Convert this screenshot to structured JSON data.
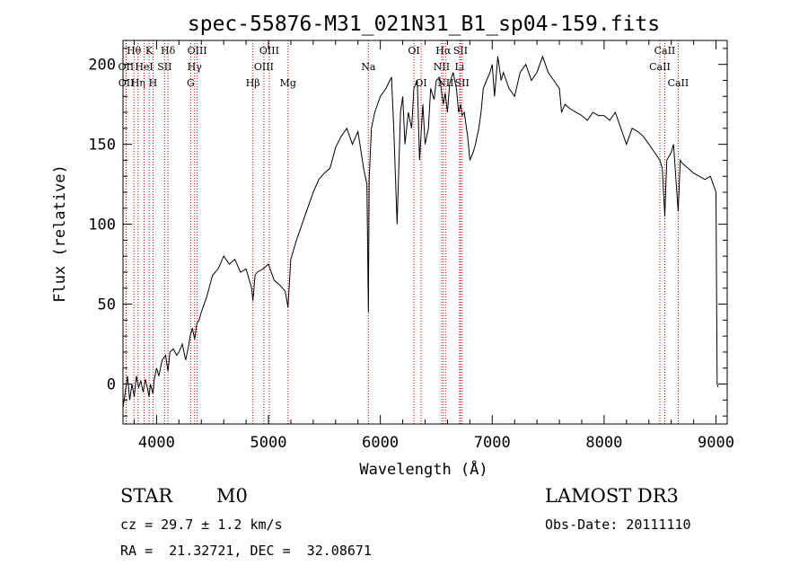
{
  "chart_data": {
    "type": "line",
    "title": "spec-55876-M31_021N31_B1_sp04-159.fits",
    "xlabel": "Wavelength (Å)",
    "ylabel": "Flux (relative)",
    "xlim": [
      3700,
      9100
    ],
    "ylim": [
      -25,
      215
    ],
    "xticks": [
      4000,
      5000,
      6000,
      7000,
      8000,
      9000
    ],
    "yticks": [
      0,
      50,
      100,
      150,
      200
    ],
    "series": [
      {
        "x": [
          3700,
          3720,
          3740,
          3760,
          3780,
          3800,
          3820,
          3840,
          3860,
          3880,
          3900,
          3920,
          3933,
          3945,
          3968,
          3980,
          4000,
          4020,
          4050,
          4080,
          4102,
          4120,
          4150,
          4180,
          4200,
          4230,
          4260,
          4290,
          4300,
          4320,
          4340,
          4360,
          4380,
          4400,
          4450,
          4500,
          4550,
          4600,
          4650,
          4700,
          4750,
          4800,
          4850,
          4861,
          4880,
          4900,
          4950,
          5000,
          5050,
          5100,
          5150,
          5175,
          5180,
          5200,
          5250,
          5300,
          5350,
          5400,
          5450,
          5500,
          5550,
          5600,
          5650,
          5700,
          5750,
          5800,
          5850,
          5880,
          5893,
          5900,
          5920,
          5950,
          6000,
          6050,
          6100,
          6120,
          6150,
          6180,
          6200,
          6220,
          6250,
          6280,
          6300,
          6330,
          6350,
          6380,
          6400,
          6430,
          6450,
          6480,
          6500,
          6530,
          6563,
          6580,
          6600,
          6620,
          6650,
          6680,
          6700,
          6717,
          6731,
          6750,
          6780,
          6800,
          6830,
          6850,
          6880,
          6900,
          6920,
          6950,
          6980,
          7000,
          7020,
          7050,
          7080,
          7100,
          7150,
          7200,
          7250,
          7300,
          7350,
          7400,
          7450,
          7500,
          7550,
          7600,
          7620,
          7650,
          7700,
          7750,
          7800,
          7850,
          7900,
          7950,
          8000,
          8050,
          8100,
          8150,
          8200,
          8250,
          8300,
          8350,
          8400,
          8450,
          8498,
          8520,
          8542,
          8560,
          8600,
          8620,
          8662,
          8680,
          8700,
          8750,
          8800,
          8850,
          8900,
          8950,
          9000,
          9010,
          9020
        ],
        "values": [
          -15,
          -5,
          5,
          -10,
          0,
          -8,
          5,
          -2,
          2,
          -5,
          3,
          -3,
          -8,
          0,
          -6,
          3,
          10,
          5,
          15,
          18,
          8,
          20,
          22,
          18,
          20,
          25,
          15,
          25,
          30,
          35,
          28,
          38,
          40,
          45,
          55,
          68,
          72,
          80,
          75,
          78,
          70,
          72,
          60,
          52,
          68,
          70,
          72,
          75,
          65,
          62,
          58,
          48,
          55,
          78,
          90,
          100,
          110,
          120,
          128,
          132,
          135,
          148,
          155,
          160,
          150,
          158,
          135,
          125,
          45,
          128,
          160,
          170,
          180,
          185,
          192,
          160,
          100,
          170,
          180,
          150,
          170,
          160,
          185,
          190,
          140,
          175,
          150,
          160,
          185,
          178,
          190,
          192,
          175,
          182,
          170,
          188,
          195,
          185,
          170,
          175,
          168,
          170,
          155,
          140,
          145,
          150,
          160,
          170,
          185,
          190,
          195,
          200,
          180,
          205,
          190,
          195,
          185,
          180,
          195,
          200,
          190,
          195,
          205,
          195,
          190,
          185,
          170,
          175,
          172,
          170,
          168,
          165,
          170,
          168,
          168,
          165,
          170,
          160,
          150,
          160,
          158,
          155,
          150,
          145,
          140,
          135,
          105,
          140,
          145,
          150,
          108,
          140,
          138,
          135,
          132,
          130,
          128,
          130,
          120,
          0,
          -2
        ]
      }
    ],
    "lines": [
      {
        "name": "Hθ",
        "wave": 3798,
        "row": 0
      },
      {
        "name": "OII",
        "wave": 3727,
        "row": 1
      },
      {
        "name": "OII",
        "wave": 3729,
        "row": 2
      },
      {
        "name": "Hη",
        "wave": 3835,
        "row": 2
      },
      {
        "name": "K",
        "wave": 3934,
        "row": 0
      },
      {
        "name": "HeI",
        "wave": 3889,
        "row": 1
      },
      {
        "name": "H",
        "wave": 3968,
        "row": 2
      },
      {
        "name": "Hδ",
        "wave": 4102,
        "row": 0
      },
      {
        "name": "SII",
        "wave": 4072,
        "row": 1
      },
      {
        "name": "OIII",
        "wave": 4363,
        "row": 0
      },
      {
        "name": "Hγ",
        "wave": 4340,
        "row": 1
      },
      {
        "name": "G",
        "wave": 4305,
        "row": 2
      },
      {
        "name": "Hβ",
        "wave": 4861,
        "row": 2
      },
      {
        "name": "OIII",
        "wave": 5007,
        "row": 0
      },
      {
        "name": "OIII",
        "wave": 4959,
        "row": 1
      },
      {
        "name": "Mg",
        "wave": 5175,
        "row": 2
      },
      {
        "name": "Na",
        "wave": 5893,
        "row": 1
      },
      {
        "name": "OI",
        "wave": 6300,
        "row": 0
      },
      {
        "name": "OI",
        "wave": 6364,
        "row": 2
      },
      {
        "name": "Hα",
        "wave": 6563,
        "row": 0
      },
      {
        "name": "NII",
        "wave": 6548,
        "row": 1
      },
      {
        "name": "NII",
        "wave": 6583,
        "row": 2
      },
      {
        "name": "SII",
        "wave": 6717,
        "row": 0
      },
      {
        "name": "Li",
        "wave": 6708,
        "row": 1
      },
      {
        "name": "SII",
        "wave": 6731,
        "row": 2
      },
      {
        "name": "CaII",
        "wave": 8542,
        "row": 0
      },
      {
        "name": "CaII",
        "wave": 8498,
        "row": 1
      },
      {
        "name": "CaII",
        "wave": 8662,
        "row": 2
      }
    ],
    "line_color": "#cc0000",
    "spectrum_color": "#000000"
  },
  "info": {
    "class": "STAR",
    "subclass": "M0",
    "survey": "LAMOST DR3",
    "cz": "cz = 29.7 ± 1.2 km/s",
    "obsdate": "Obs-Date: 20111110",
    "coords": "RA =  21.32721, DEC =  32.08671"
  }
}
